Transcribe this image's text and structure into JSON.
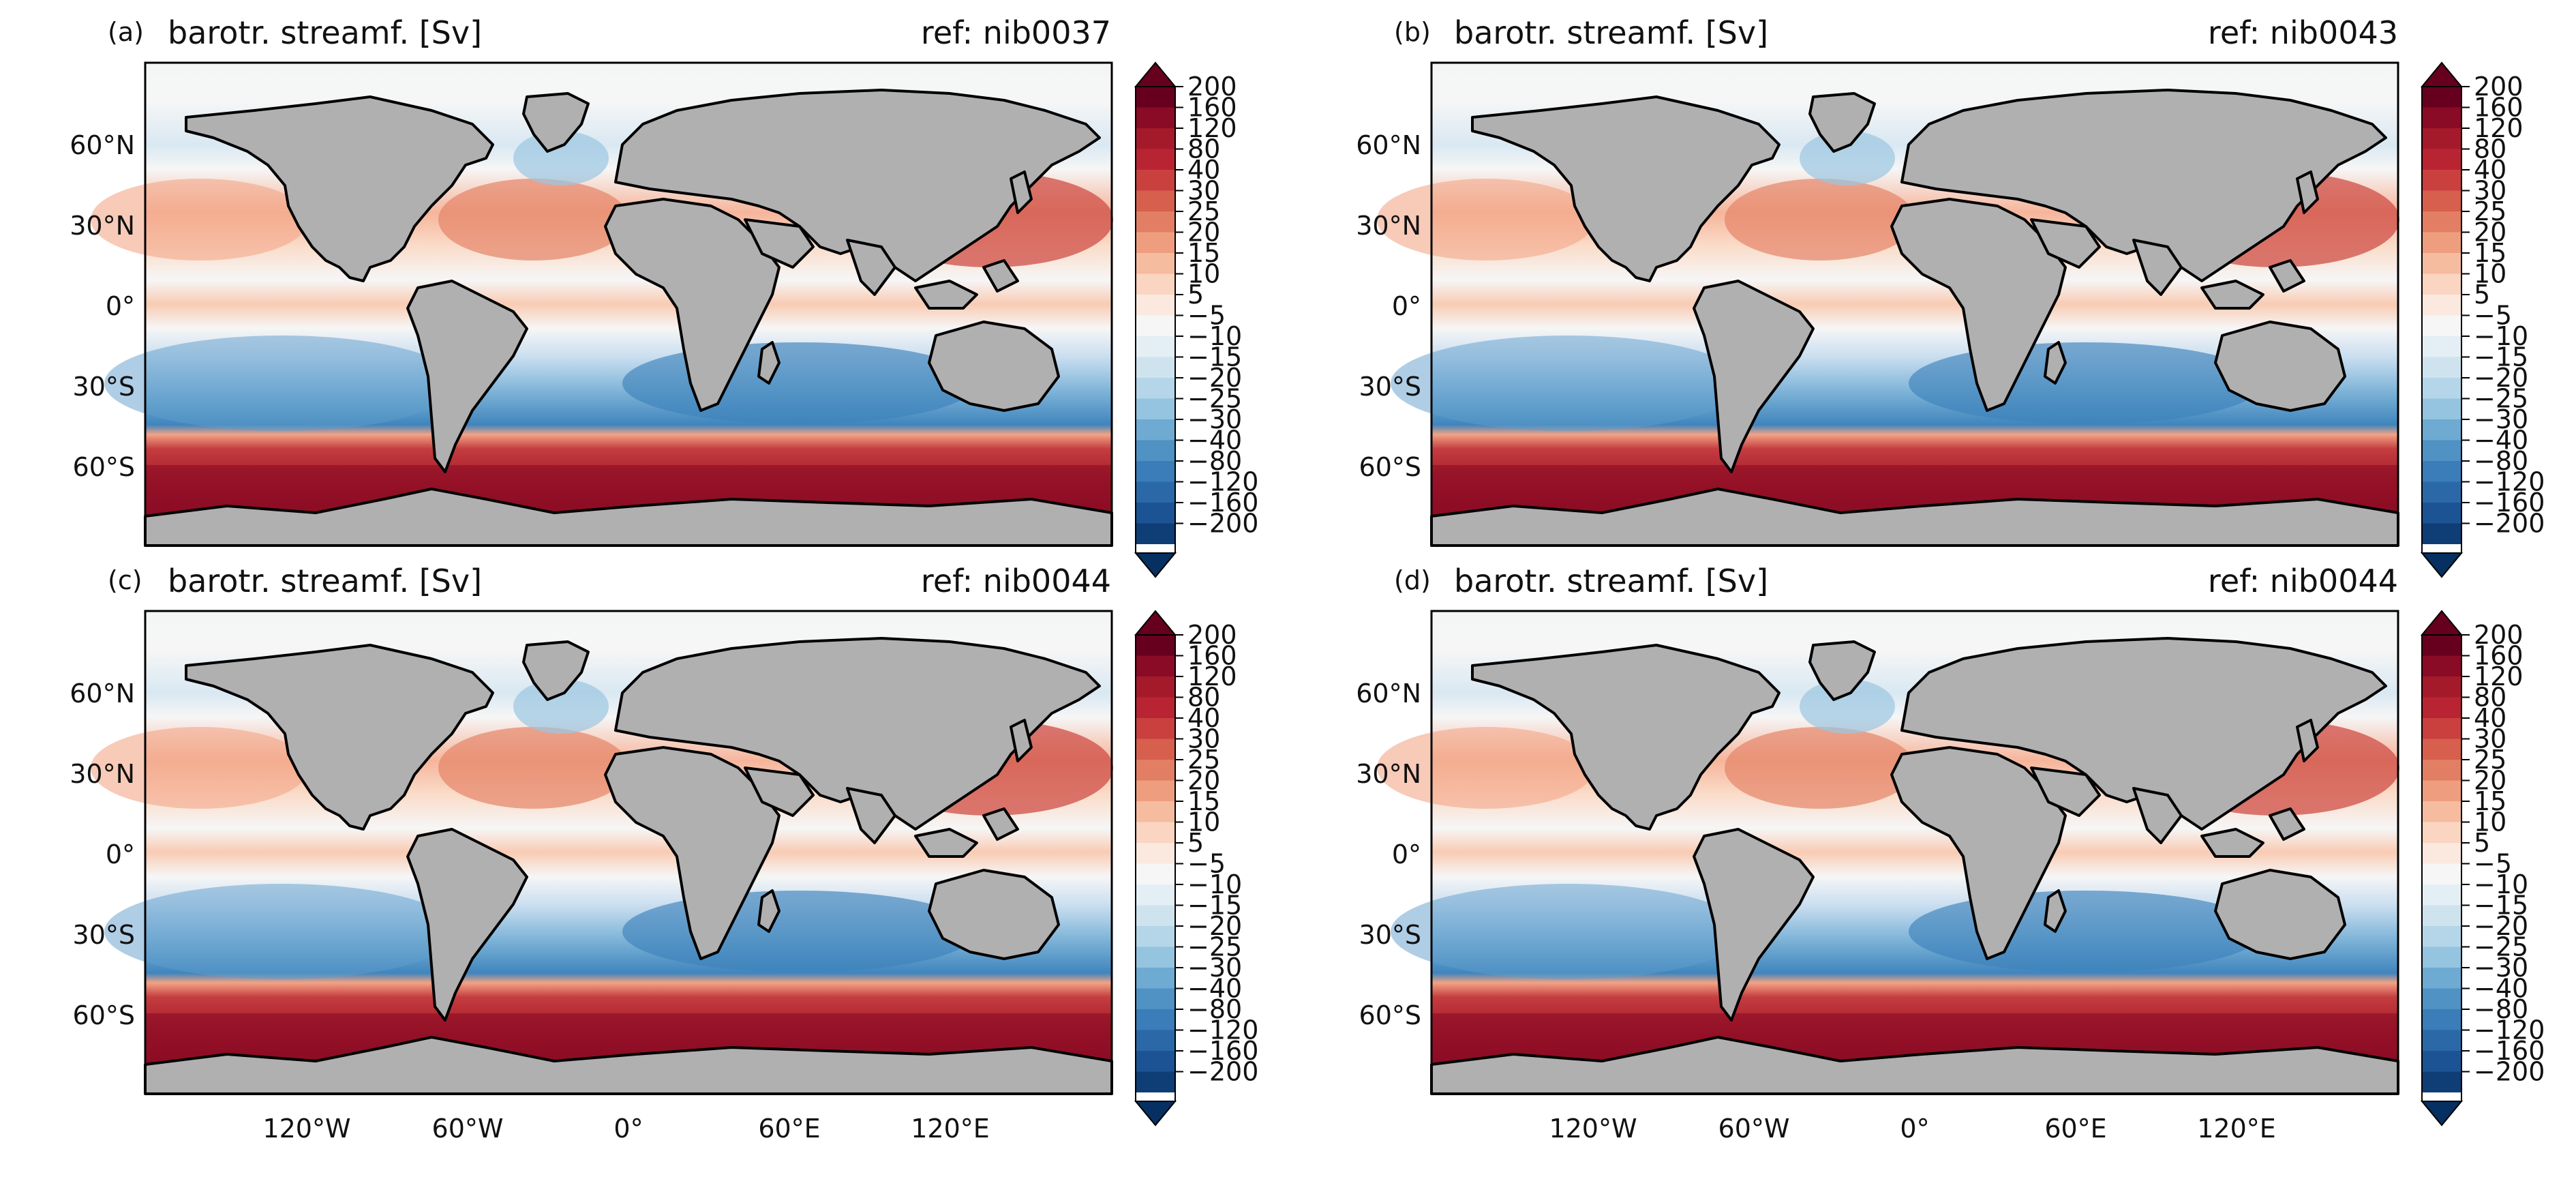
{
  "figure": {
    "panels": [
      {
        "letter": "(a)",
        "title": "barotr. streamf. [Sv]",
        "ref": "ref: nib0037"
      },
      {
        "letter": "(b)",
        "title": "barotr. streamf. [Sv]",
        "ref": "ref: nib0043"
      },
      {
        "letter": "(c)",
        "title": "barotr. streamf. [Sv]",
        "ref": "ref: nib0044"
      },
      {
        "letter": "(d)",
        "title": "barotr. streamf. [Sv]",
        "ref": "ref: nib0044"
      }
    ],
    "lat_ticks": [
      "60°N",
      "30°N",
      "0°",
      "30°S",
      "60°S"
    ],
    "lon_ticks": [
      "120°W",
      "60°W",
      "0°",
      "60°E",
      "120°E"
    ],
    "colorbar_levels": [
      "200",
      "160",
      "120",
      "80",
      "40",
      "30",
      "25",
      "20",
      "15",
      "10",
      "5",
      "−5",
      "−10",
      "−15",
      "−20",
      "−25",
      "−30",
      "−40",
      "−80",
      "−120",
      "−160",
      "−200"
    ],
    "colorbar_colors": [
      "#67001f",
      "#8a0b25",
      "#a51a2b",
      "#b92433",
      "#c9403f",
      "#d65f4d",
      "#e27e63",
      "#ee9e7e",
      "#f6bca0",
      "#fad5c1",
      "#fbe9df",
      "#f6f6f6",
      "#e4eef5",
      "#cfe3ef",
      "#b4d6e8",
      "#94c4df",
      "#6eaad1",
      "#4f92c3",
      "#3a7db8",
      "#2b68a8",
      "#1c5395",
      "#0f3d75",
      "#053061"
    ],
    "land_color": "#b0b0b0",
    "ocean_neutral": "#f4f5f5"
  }
}
